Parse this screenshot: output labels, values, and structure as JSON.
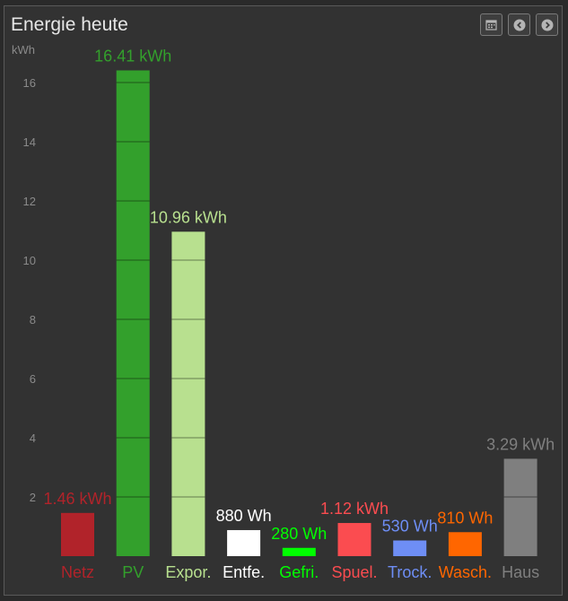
{
  "window": {
    "title": "Energie heute"
  },
  "toolbar": {
    "icons": [
      "calendar-icon",
      "chevron-left-icon",
      "chevron-right-icon"
    ]
  },
  "chart_data": {
    "type": "bar",
    "title": "Energie heute",
    "ylabel": "kWh",
    "ylim": [
      0,
      17
    ],
    "yticks": [
      2,
      4,
      6,
      8,
      10,
      12,
      14,
      16
    ],
    "grid": false,
    "categories": [
      "Netz",
      "PV",
      "Expor.",
      "Entfe.",
      "Gefri.",
      "Spuel.",
      "Trock.",
      "Wasch.",
      "Haus"
    ],
    "values": [
      1.46,
      16.41,
      10.96,
      0.88,
      0.28,
      1.12,
      0.53,
      0.81,
      3.29
    ],
    "value_labels": [
      "1.46 kWh",
      "16.41 kWh",
      "10.96 kWh",
      "880 Wh",
      "280 Wh",
      "1.12 kWh",
      "530 Wh",
      "810 Wh",
      "3.29 kWh"
    ],
    "colors": [
      "#b1232a",
      "#33a02c",
      "#b8e08f",
      "#ffffff",
      "#00ff00",
      "#fb4c50",
      "#6e8ef5",
      "#ff6600",
      "#7f7f7f"
    ],
    "label_colors": [
      "#b1232a",
      "#33a02c",
      "#b8e08f",
      "#ffffff",
      "#00ff00",
      "#fb4c50",
      "#6e8ef5",
      "#ff6600",
      "#7f7f7f"
    ]
  }
}
